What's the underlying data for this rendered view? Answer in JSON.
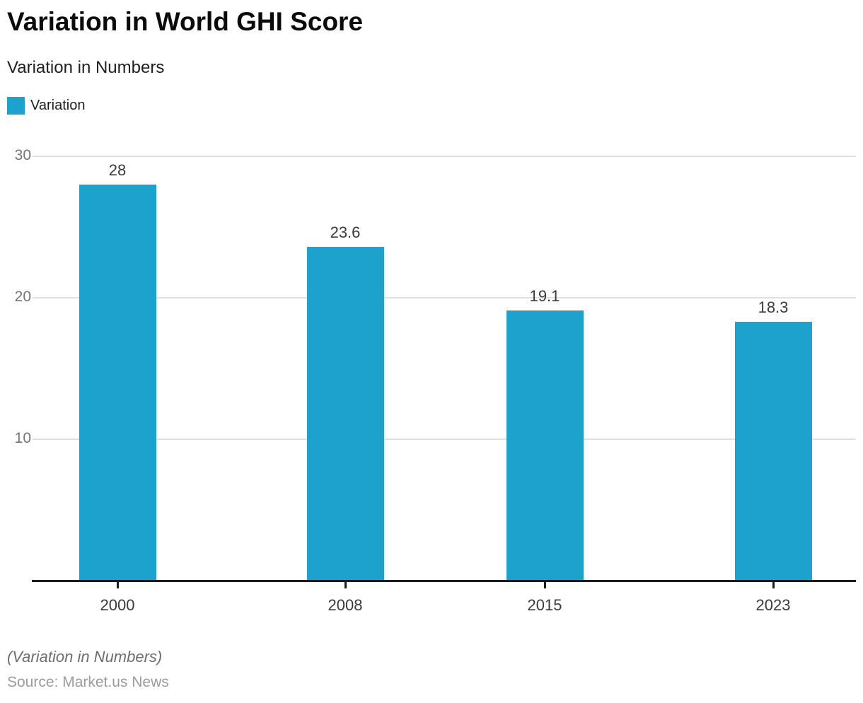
{
  "header": {
    "title": "Variation in World GHI Score",
    "subtitle": "Variation in Numbers"
  },
  "legend": {
    "label": "Variation"
  },
  "footer": {
    "footnote": "(Variation in Numbers)",
    "source": "Source: Market.us News"
  },
  "colors": {
    "bar": "#1CA2CC",
    "gridline": "#e0e0e0",
    "axis": "#1c1c1c",
    "y_label": "#757575",
    "value_label": "#3a3a3a"
  },
  "chart_data": {
    "type": "bar",
    "title": "Variation in World GHI Score",
    "subtitle": "Variation in Numbers",
    "legend_entries": [
      "Variation"
    ],
    "legend_position": "top-left",
    "categories": [
      "2000",
      "2008",
      "2015",
      "2023"
    ],
    "series": [
      {
        "name": "Variation",
        "values": [
          28,
          23.6,
          19.1,
          18.3
        ]
      }
    ],
    "value_labels": [
      "28",
      "23.6",
      "19.1",
      "18.3"
    ],
    "xlabel": "",
    "ylabel": "",
    "y_ticks": [
      10,
      20,
      30
    ],
    "ylim": [
      0,
      30
    ],
    "grid": true,
    "footnote": "(Variation in Numbers)",
    "source": "Source: Market.us News"
  }
}
